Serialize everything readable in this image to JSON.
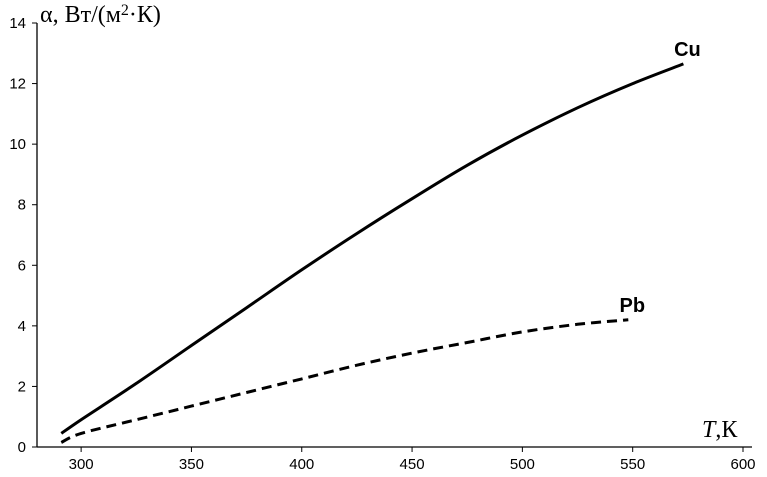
{
  "chart_data": {
    "type": "line",
    "ylabel": "α, Вт/(м2·К)",
    "ylabel_parts": {
      "main": "α, Вт/(м",
      "sup": "2",
      "tail": "·К)"
    },
    "xlabel": "T,К",
    "xlabel_parts": {
      "var": "T",
      "unit": ",К"
    },
    "xlim": [
      280,
      600
    ],
    "ylim": [
      0,
      14
    ],
    "xticks": [
      300,
      350,
      400,
      450,
      500,
      550,
      600
    ],
    "yticks": [
      0,
      2,
      4,
      6,
      8,
      10,
      12,
      14
    ],
    "grid": false,
    "series": [
      {
        "name": "Cu",
        "style": "solid",
        "color": "#000000",
        "x": [
          291,
          300,
          325,
          350,
          375,
          400,
          425,
          450,
          475,
          500,
          525,
          550,
          573
        ],
        "y": [
          0.45,
          0.9,
          2.1,
          3.35,
          4.6,
          5.85,
          7.05,
          8.2,
          9.3,
          10.3,
          11.2,
          12.0,
          12.65
        ]
      },
      {
        "name": "Pb",
        "style": "dashed",
        "color": "#000000",
        "x": [
          291,
          300,
          325,
          350,
          375,
          400,
          425,
          450,
          475,
          500,
          525,
          548
        ],
        "y": [
          0.15,
          0.45,
          0.9,
          1.35,
          1.8,
          2.25,
          2.7,
          3.1,
          3.45,
          3.8,
          4.05,
          4.2
        ]
      }
    ]
  }
}
